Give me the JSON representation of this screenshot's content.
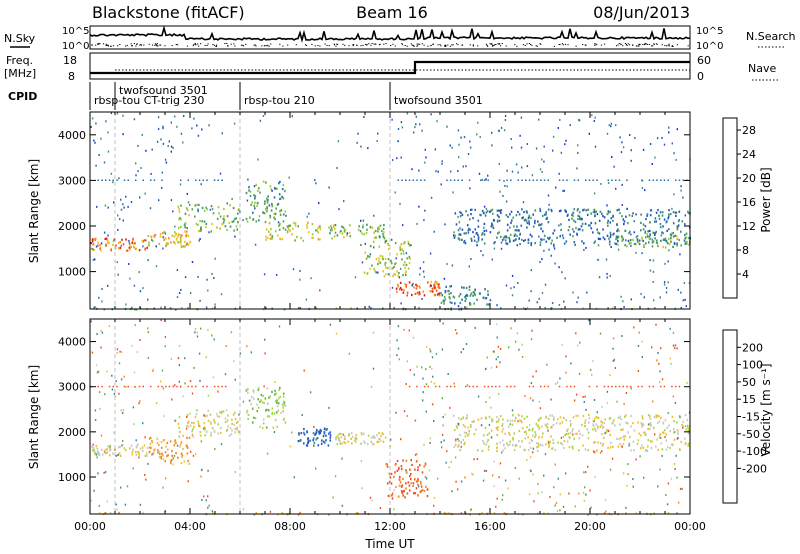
{
  "header": {
    "station": "Blackstone (fitACF)",
    "beam": "Beam 16",
    "date": "08/Jun/2013"
  },
  "noise_panel": {
    "left_label": "N.Sky",
    "right_label": "N.Search",
    "ticks": [
      "10^5",
      "10^0"
    ]
  },
  "freq_panel": {
    "left_label_line1": "Freq.",
    "left_label_line2": "[MHz]",
    "left_ticks": [
      "18",
      "8"
    ],
    "right_label": "Nave",
    "right_ticks": [
      "60",
      "0"
    ]
  },
  "cpid": {
    "label": "CPID",
    "programs": [
      {
        "name": "rbsp-tou CT-trig 230",
        "start_h": 0.0,
        "end_h": 6.0
      },
      {
        "name": "twofsound 3501",
        "start_h": 1.0,
        "end_h": 6.0
      },
      {
        "name": "rbsp-tou 210",
        "start_h": 6.0,
        "end_h": 12.0
      },
      {
        "name": "twofsound 3501",
        "start_h": 12.0,
        "end_h": 24.0
      }
    ]
  },
  "chart_data": [
    {
      "type": "heatmap",
      "quantity": "Power",
      "ylabel": "Slant Range [km]",
      "xlabel": "Time UT",
      "xlim": [
        0,
        24
      ],
      "ylim": [
        180,
        4500
      ],
      "yticks": [
        1000,
        2000,
        3000,
        4000
      ],
      "xticks": [
        "00:00",
        "04:00",
        "08:00",
        "12:00",
        "16:00",
        "20:00",
        "00:00"
      ],
      "colorbar": {
        "label": "Power [dB]",
        "ticks": [
          4,
          8,
          12,
          16,
          20,
          24,
          28
        ],
        "range": [
          0,
          30
        ],
        "colors": [
          "#1030e0",
          "#2050c0",
          "#2b6aa8",
          "#3a8f7a",
          "#55a845",
          "#9cc83a",
          "#e8c020",
          "#f09020",
          "#f05818",
          "#e01a10"
        ]
      },
      "echo_regions": [
        {
          "t0": 0.0,
          "t1": 2.3,
          "r0": 1480,
          "r1": 1750,
          "power": 24
        },
        {
          "t0": 2.3,
          "t1": 4.0,
          "r0": 1550,
          "r1": 1900,
          "power": 20
        },
        {
          "t0": 3.5,
          "t1": 6.0,
          "r0": 1900,
          "r1": 2500,
          "power": 14
        },
        {
          "t0": 6.2,
          "t1": 7.8,
          "r0": 2100,
          "r1": 3000,
          "power": 12
        },
        {
          "t0": 7.0,
          "t1": 9.2,
          "r0": 1700,
          "r1": 2100,
          "power": 18
        },
        {
          "t0": 9.5,
          "t1": 11.8,
          "r0": 1750,
          "r1": 2050,
          "power": 15
        },
        {
          "t0": 10.8,
          "t1": 12.8,
          "r0": 900,
          "r1": 1700,
          "power": 16
        },
        {
          "t0": 12.2,
          "t1": 14.0,
          "r0": 500,
          "r1": 800,
          "power": 25
        },
        {
          "t0": 14.0,
          "t1": 16.0,
          "r0": 300,
          "r1": 700,
          "power": 10
        },
        {
          "t0": 14.5,
          "t1": 24.0,
          "r0": 1600,
          "r1": 2400,
          "power": 8
        },
        {
          "t0": 21.0,
          "t1": 24.0,
          "r0": 1550,
          "r1": 1950,
          "power": 14
        },
        {
          "t0": 0.0,
          "t1": 24.0,
          "r0": 190,
          "r1": 230,
          "power": 12
        }
      ]
    },
    {
      "type": "heatmap",
      "quantity": "Velocity",
      "ylabel": "Slant Range [km]",
      "xlabel": "Time UT",
      "xlim": [
        0,
        24
      ],
      "ylim": [
        180,
        4500
      ],
      "yticks": [
        1000,
        2000,
        3000,
        4000
      ],
      "xticks": [
        "00:00",
        "04:00",
        "08:00",
        "12:00",
        "16:00",
        "20:00",
        "00:00"
      ],
      "colorbar": {
        "label": "Velocity [m s⁻¹]",
        "ticks": [
          "200",
          "100",
          "50",
          "15",
          "-15",
          "-50",
          "-100",
          "-200"
        ],
        "colors": [
          "#1030d0",
          "#2458c8",
          "#3a8a90",
          "#60b040",
          "#a8d848",
          "#c8c8c8",
          "#f0c030",
          "#f08828",
          "#f05020",
          "#e01010"
        ]
      },
      "echo_regions": [
        {
          "t0": 0.0,
          "t1": 2.3,
          "r0": 1480,
          "r1": 1750,
          "velocity": 0
        },
        {
          "t0": 2.3,
          "t1": 4.0,
          "r0": 1300,
          "r1": 1900,
          "velocity": -60
        },
        {
          "t0": 3.5,
          "t1": 6.0,
          "r0": 1900,
          "r1": 2500,
          "velocity": 0
        },
        {
          "t0": 6.2,
          "t1": 7.8,
          "r0": 2100,
          "r1": 3000,
          "velocity": 40
        },
        {
          "t0": 8.3,
          "t1": 9.6,
          "r0": 1700,
          "r1": 2100,
          "velocity": 220
        },
        {
          "t0": 9.8,
          "t1": 11.8,
          "r0": 1750,
          "r1": 2000,
          "velocity": 0
        },
        {
          "t0": 11.8,
          "t1": 13.5,
          "r0": 500,
          "r1": 1400,
          "velocity": -120
        },
        {
          "t0": 14.5,
          "t1": 24.0,
          "r0": 1600,
          "r1": 2400,
          "velocity": 0
        },
        {
          "t0": 0.0,
          "t1": 24.0,
          "r0": 190,
          "r1": 230,
          "velocity": -40
        }
      ]
    }
  ]
}
